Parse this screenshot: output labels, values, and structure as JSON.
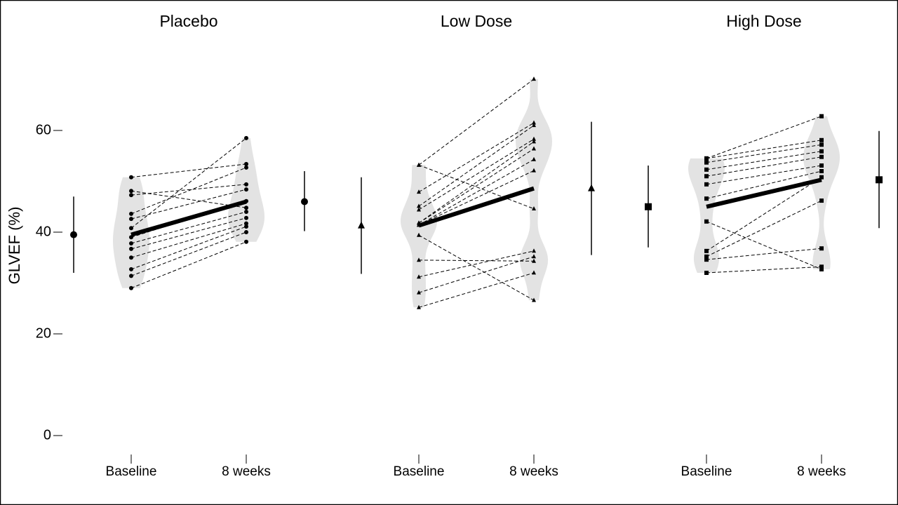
{
  "chart_data": {
    "type": "paired-violin",
    "ylabel": "GLVEF (%)",
    "ylim": [
      -4,
      80
    ],
    "yticks": [
      0,
      20,
      40,
      60
    ],
    "categories": [
      "Baseline",
      "8 weeks"
    ],
    "panels": [
      {
        "title": "Placebo",
        "marker": "circle",
        "baseline": [
          50.8,
          48.1,
          47.3,
          43.6,
          42.6,
          40.8,
          39.0,
          37.8,
          36.7,
          35.0,
          32.7,
          31.4,
          29.0
        ],
        "week8": [
          53.4,
          44.8,
          49.4,
          52.7,
          48.4,
          58.5,
          46.1,
          44.0,
          42.8,
          41.7,
          41.1,
          40.0,
          38.1
        ],
        "summary": [
          {
            "mean": 39.5,
            "low": 32.0,
            "high": 47.0
          },
          {
            "mean": 46.0,
            "low": 40.2,
            "high": 52.0
          }
        ]
      },
      {
        "title": "Low Dose",
        "marker": "triangle",
        "baseline": [
          53.2,
          53.2,
          47.9,
          45.1,
          44.4,
          41.8,
          41.8,
          41.4,
          41.4,
          39.4,
          34.5,
          31.2,
          28.1,
          25.2
        ],
        "week8": [
          70.1,
          44.6,
          61.5,
          61.0,
          58.3,
          57.8,
          56.4,
          54.3,
          52.1,
          26.6,
          34.3,
          36.3,
          35.2,
          32.0
        ],
        "summary": [
          {
            "mean": 41.3,
            "low": 31.8,
            "high": 50.8
          },
          {
            "mean": 48.6,
            "low": 35.5,
            "high": 61.7
          }
        ]
      },
      {
        "title": "High Dose",
        "marker": "square",
        "baseline": [
          54.5,
          54.5,
          53.7,
          52.3,
          51.0,
          49.4,
          46.6,
          42.1,
          36.3,
          35.2,
          34.6,
          32.0
        ],
        "week8": [
          62.8,
          58.1,
          57.2,
          55.9,
          54.8,
          53.1,
          52.0,
          32.7,
          50.8,
          46.2,
          36.8,
          33.2
        ],
        "summary": [
          {
            "mean": 45.0,
            "low": 37.0,
            "high": 53.1
          },
          {
            "mean": 50.3,
            "low": 40.8,
            "high": 59.9
          }
        ]
      }
    ]
  }
}
